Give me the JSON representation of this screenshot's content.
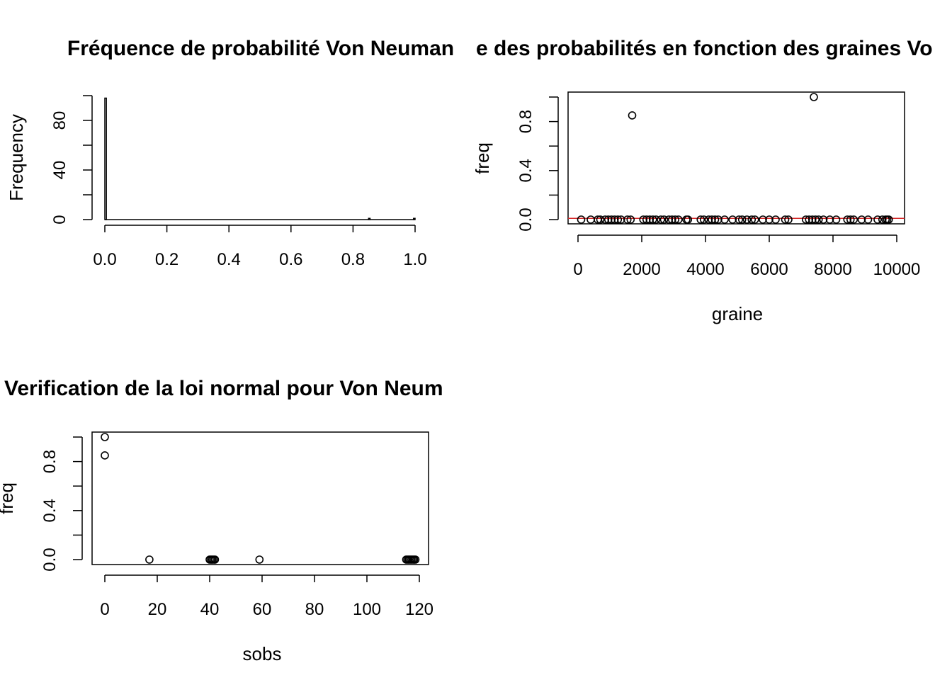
{
  "chart_data": [
    {
      "type": "histogram",
      "title": "Fréquence de probabilité Von Neuman",
      "xlabel": "",
      "ylabel": "Frequency",
      "xlim": [
        0,
        1
      ],
      "ylim": [
        0,
        100
      ],
      "x_ticks": [
        "0.0",
        "0.2",
        "0.4",
        "0.6",
        "0.8",
        "1.0"
      ],
      "y_ticks": [
        "0",
        "40",
        "80"
      ],
      "bin_width": 0.005,
      "bins": [
        {
          "x0": 0.0,
          "x1": 0.005,
          "count": 98
        },
        {
          "x0": 0.85,
          "x1": 0.855,
          "count": 1
        },
        {
          "x0": 0.995,
          "x1": 1.0,
          "count": 1
        }
      ]
    },
    {
      "type": "scatter",
      "title": "e des probabilités en fonction des graines Vo",
      "xlabel": "graine",
      "ylabel": "freq",
      "xlim": [
        0,
        10000
      ],
      "ylim": [
        0,
        1
      ],
      "x_ticks": [
        "0",
        "2000",
        "4000",
        "6000",
        "8000",
        "10000"
      ],
      "y_ticks": [
        "0.0",
        "0.4",
        "0.8"
      ],
      "hline": {
        "y": 0.01,
        "color": "#d62728"
      },
      "points": [
        {
          "x": 1700,
          "y": 0.85
        },
        {
          "x": 7400,
          "y": 1.0
        },
        {
          "x": 100,
          "y": 0
        },
        {
          "x": 400,
          "y": 0
        },
        {
          "x": 620,
          "y": 0
        },
        {
          "x": 700,
          "y": 0
        },
        {
          "x": 850,
          "y": 0
        },
        {
          "x": 950,
          "y": 0
        },
        {
          "x": 1050,
          "y": 0
        },
        {
          "x": 1150,
          "y": 0
        },
        {
          "x": 1250,
          "y": 0
        },
        {
          "x": 1350,
          "y": 0
        },
        {
          "x": 1550,
          "y": 0
        },
        {
          "x": 1650,
          "y": 0
        },
        {
          "x": 2050,
          "y": 0
        },
        {
          "x": 2150,
          "y": 0
        },
        {
          "x": 2250,
          "y": 0
        },
        {
          "x": 2350,
          "y": 0
        },
        {
          "x": 2450,
          "y": 0
        },
        {
          "x": 2600,
          "y": 0
        },
        {
          "x": 2700,
          "y": 0
        },
        {
          "x": 2850,
          "y": 0
        },
        {
          "x": 2950,
          "y": 0
        },
        {
          "x": 3050,
          "y": 0
        },
        {
          "x": 3150,
          "y": 0
        },
        {
          "x": 3400,
          "y": 0
        },
        {
          "x": 3450,
          "y": 0
        },
        {
          "x": 3850,
          "y": 0
        },
        {
          "x": 3950,
          "y": 0
        },
        {
          "x": 4100,
          "y": 0
        },
        {
          "x": 4200,
          "y": 0
        },
        {
          "x": 4300,
          "y": 0
        },
        {
          "x": 4400,
          "y": 0
        },
        {
          "x": 4600,
          "y": 0
        },
        {
          "x": 4850,
          "y": 0
        },
        {
          "x": 5050,
          "y": 0
        },
        {
          "x": 5150,
          "y": 0
        },
        {
          "x": 5300,
          "y": 0
        },
        {
          "x": 5450,
          "y": 0
        },
        {
          "x": 5550,
          "y": 0
        },
        {
          "x": 5800,
          "y": 0
        },
        {
          "x": 6000,
          "y": 0
        },
        {
          "x": 6200,
          "y": 0
        },
        {
          "x": 6500,
          "y": 0
        },
        {
          "x": 6600,
          "y": 0
        },
        {
          "x": 7150,
          "y": 0
        },
        {
          "x": 7250,
          "y": 0
        },
        {
          "x": 7350,
          "y": 0
        },
        {
          "x": 7450,
          "y": 0
        },
        {
          "x": 7550,
          "y": 0
        },
        {
          "x": 7700,
          "y": 0
        },
        {
          "x": 7900,
          "y": 0
        },
        {
          "x": 8100,
          "y": 0
        },
        {
          "x": 8450,
          "y": 0
        },
        {
          "x": 8550,
          "y": 0
        },
        {
          "x": 8650,
          "y": 0
        },
        {
          "x": 8900,
          "y": 0
        },
        {
          "x": 9100,
          "y": 0
        },
        {
          "x": 9400,
          "y": 0
        },
        {
          "x": 9550,
          "y": 0
        },
        {
          "x": 9650,
          "y": 0
        },
        {
          "x": 9700,
          "y": 0
        },
        {
          "x": 9750,
          "y": 0
        }
      ]
    },
    {
      "type": "scatter",
      "title": "Verification de la loi normal pour Von Neum",
      "xlabel": "sobs",
      "ylabel": "freq",
      "xlim": [
        0,
        120
      ],
      "ylim": [
        0,
        1
      ],
      "x_ticks": [
        "0",
        "20",
        "40",
        "60",
        "80",
        "100",
        "120"
      ],
      "y_ticks": [
        "0.0",
        "0.4",
        "0.8"
      ],
      "points": [
        {
          "x": 0,
          "y": 1.0
        },
        {
          "x": 0,
          "y": 0.85
        },
        {
          "x": 17,
          "y": 0
        },
        {
          "x": 40,
          "y": 0
        },
        {
          "x": 40.5,
          "y": 0
        },
        {
          "x": 41,
          "y": 0
        },
        {
          "x": 41.5,
          "y": 0
        },
        {
          "x": 42,
          "y": 0
        },
        {
          "x": 59,
          "y": 0
        },
        {
          "x": 115,
          "y": 0
        },
        {
          "x": 115.5,
          "y": 0
        },
        {
          "x": 116,
          "y": 0
        },
        {
          "x": 116.5,
          "y": 0
        },
        {
          "x": 117,
          "y": 0
        },
        {
          "x": 117.5,
          "y": 0
        },
        {
          "x": 118,
          "y": 0
        },
        {
          "x": 118.5,
          "y": 0
        }
      ]
    }
  ]
}
